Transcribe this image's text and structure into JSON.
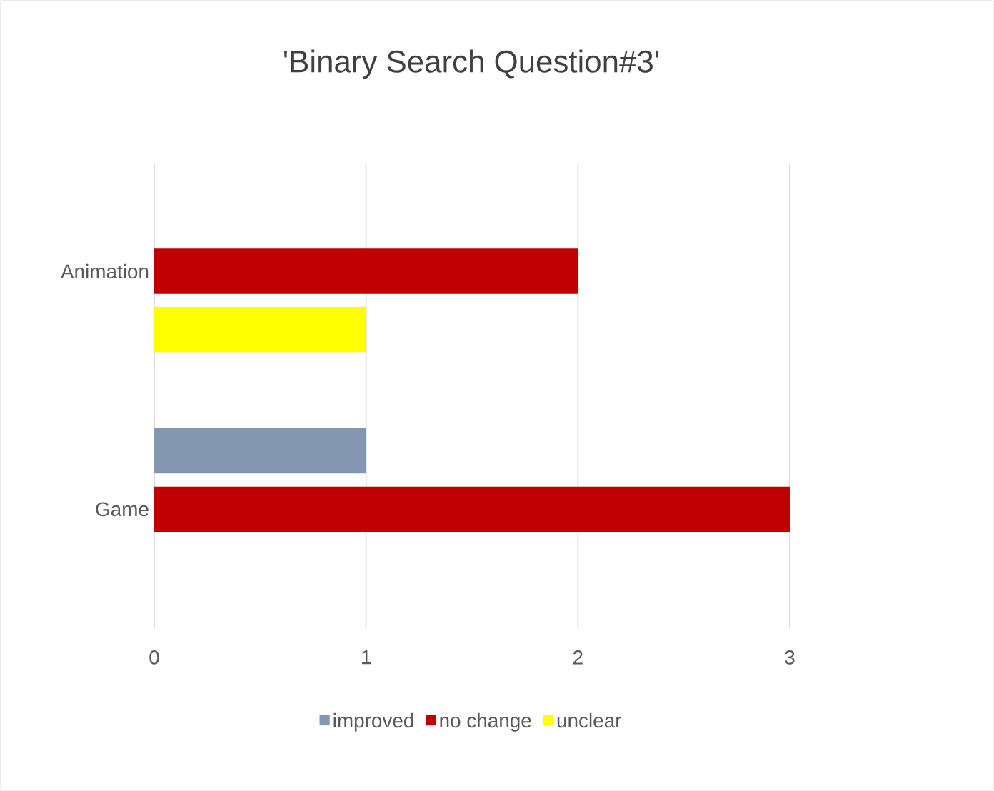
{
  "chart_data": {
    "type": "bar",
    "orientation": "horizontal",
    "title": "'Binary Search Question#3'",
    "categories": [
      "Animation",
      "Game"
    ],
    "series": [
      {
        "name": "improved",
        "color": "#8497b0",
        "values": [
          0,
          1
        ]
      },
      {
        "name": "no change",
        "color": "#c00000",
        "values": [
          2,
          3
        ]
      },
      {
        "name": "unclear",
        "color": "#ffff00",
        "values": [
          1,
          0
        ]
      }
    ],
    "xlim": [
      0,
      3
    ],
    "xticks": [
      0,
      1,
      2,
      3
    ],
    "grid": "x",
    "legend": "bottom"
  }
}
